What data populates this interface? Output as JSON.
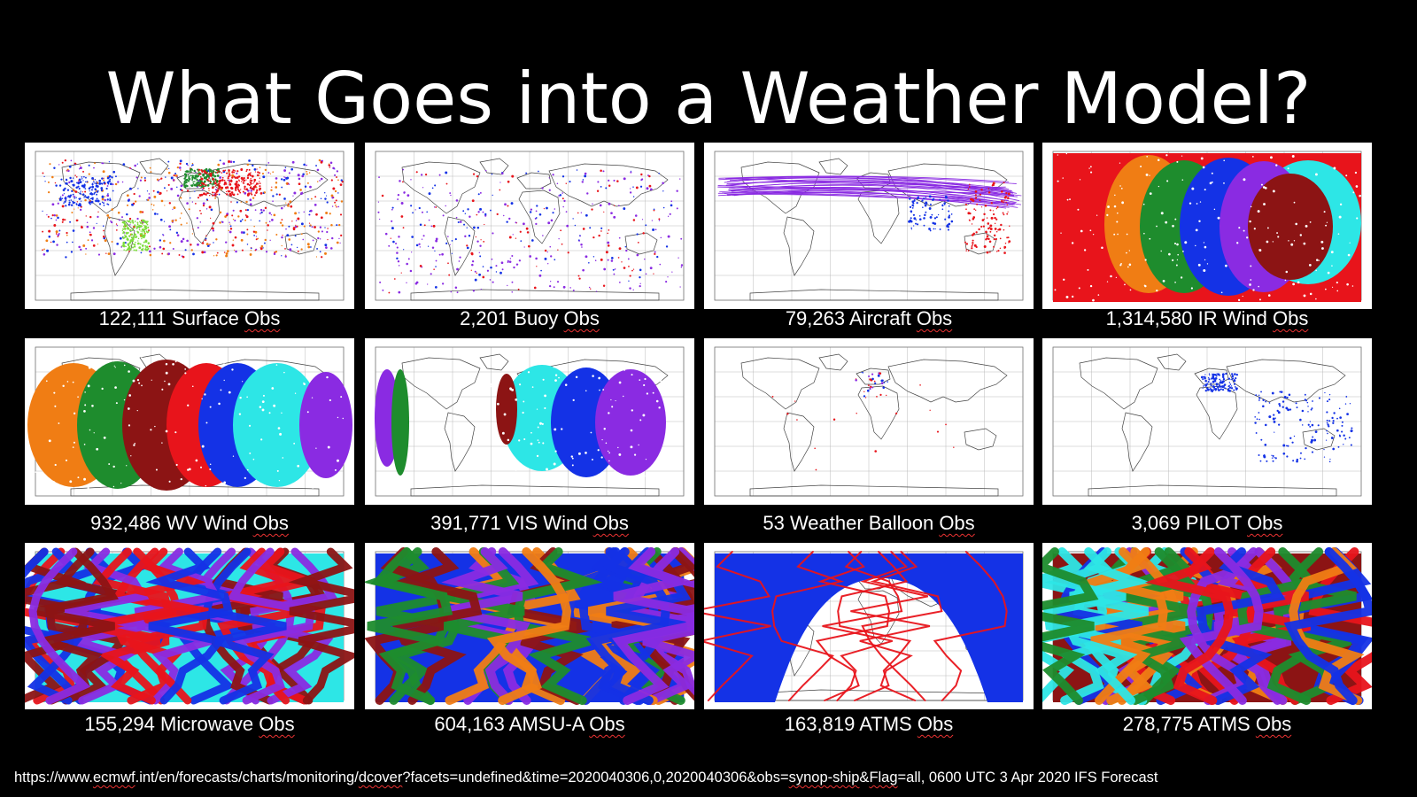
{
  "slide": {
    "title": "What Goes into a Weather Model?",
    "panels": [
      {
        "count": "122,111",
        "label": "Surface",
        "obs": "Obs"
      },
      {
        "count": "2,201",
        "label": "Buoy",
        "obs": "Obs"
      },
      {
        "count": "79,263",
        "label": "Aircraft",
        "obs": "Obs"
      },
      {
        "count": "1,314,580",
        "label": "IR Wind",
        "obs": "Obs"
      },
      {
        "count": "932,486",
        "label": "WV Wind",
        "obs": "Obs"
      },
      {
        "count": "391,771",
        "label": "VIS Wind",
        "obs": "Obs"
      },
      {
        "count": "53",
        "label": "Weather Balloon",
        "obs": "Obs"
      },
      {
        "count": "3,069",
        "label": "PILOT",
        "obs": "Obs"
      },
      {
        "count": "155,294",
        "label": "Microwave",
        "obs": "Obs"
      },
      {
        "count": "604,163",
        "label": "AMSU-A",
        "obs": "Obs"
      },
      {
        "count": "163,819",
        "label": "ATMS",
        "obs": "Obs"
      },
      {
        "count": "278,775",
        "label": "ATMS",
        "obs": "Obs"
      }
    ],
    "source": {
      "prefix": "https://www.",
      "u1": "ecmwf",
      "mid1": ".int/en/forecasts/charts/monitoring/",
      "u2": "dcover",
      "mid2": "?facets=undefined&time=2020040306,0,2020040306&obs=",
      "u3": "synop-ship",
      "mid3": "&",
      "u4": "Flag",
      "suffix": "=all, 0600 UTC 3 Apr 2020 IFS Forecast"
    }
  },
  "colors": {
    "red": "#e8141b",
    "blue": "#1432e6",
    "purple": "#8a2be2",
    "orange": "#f07d14",
    "green": "#1e8c2d",
    "cyan": "#2de6e6",
    "darkred": "#8c1414",
    "lime": "#7ddc3c"
  }
}
